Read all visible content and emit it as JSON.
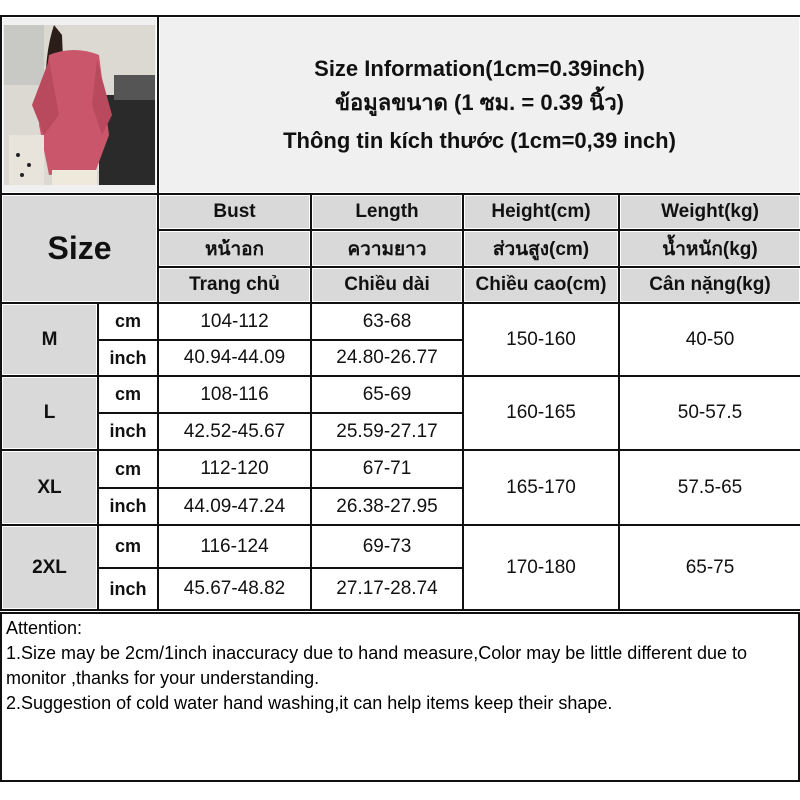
{
  "header": {
    "title_en": "Size Information(1cm=0.39inch)",
    "title_th": "ข้อมูลขนาด (1 ซม. = 0.39 นิ้ว)",
    "title_vi": "Thông tin kích thước (1cm=0,39 inch)"
  },
  "size_label": "Size",
  "columns": [
    {
      "en": "Bust",
      "th": "หน้าอก",
      "vi": "Trang chủ"
    },
    {
      "en": "Length",
      "th": "ความยาว",
      "vi": "Chiều dài"
    },
    {
      "en": "Height(cm)",
      "th": "ส่วนสูง(cm)",
      "vi": "Chiều cao(cm)"
    },
    {
      "en": "Weight(kg)",
      "th": "น้ำหนัก(kg)",
      "vi": "Cân nặng(kg)"
    }
  ],
  "units": {
    "cm": "cm",
    "inch": "inch"
  },
  "rows": [
    {
      "size": "M",
      "bust_cm": "104-112",
      "bust_inch": "40.94-44.09",
      "length_cm": "63-68",
      "length_inch": "24.80-26.77",
      "height": "150-160",
      "weight": "40-50"
    },
    {
      "size": "L",
      "bust_cm": "108-116",
      "bust_inch": "42.52-45.67",
      "length_cm": "65-69",
      "length_inch": "25.59-27.17",
      "height": "160-165",
      "weight": "50-57.5"
    },
    {
      "size": "XL",
      "bust_cm": "112-120",
      "bust_inch": "44.09-47.24",
      "length_cm": "67-71",
      "length_inch": "26.38-27.95",
      "height": "165-170",
      "weight": "57.5-65"
    },
    {
      "size": "2XL",
      "bust_cm": "116-124",
      "bust_inch": "45.67-48.82",
      "length_cm": "69-73",
      "length_inch": "27.17-28.74",
      "height": "170-180",
      "weight": "65-75"
    }
  ],
  "attention": {
    "title": "Attention:",
    "line1": "1.Size may be 2cm/1inch inaccuracy due to hand measure,Color may be little different due to monitor ,thanks for your understanding.",
    "line2": "2.Suggestion of cold water hand washing,it can help items keep their shape."
  },
  "colors": {
    "header_bg": "#d9d9d9",
    "title_bg": "#f0f0f0",
    "border": "#111111",
    "shirt": "#c9566a"
  }
}
